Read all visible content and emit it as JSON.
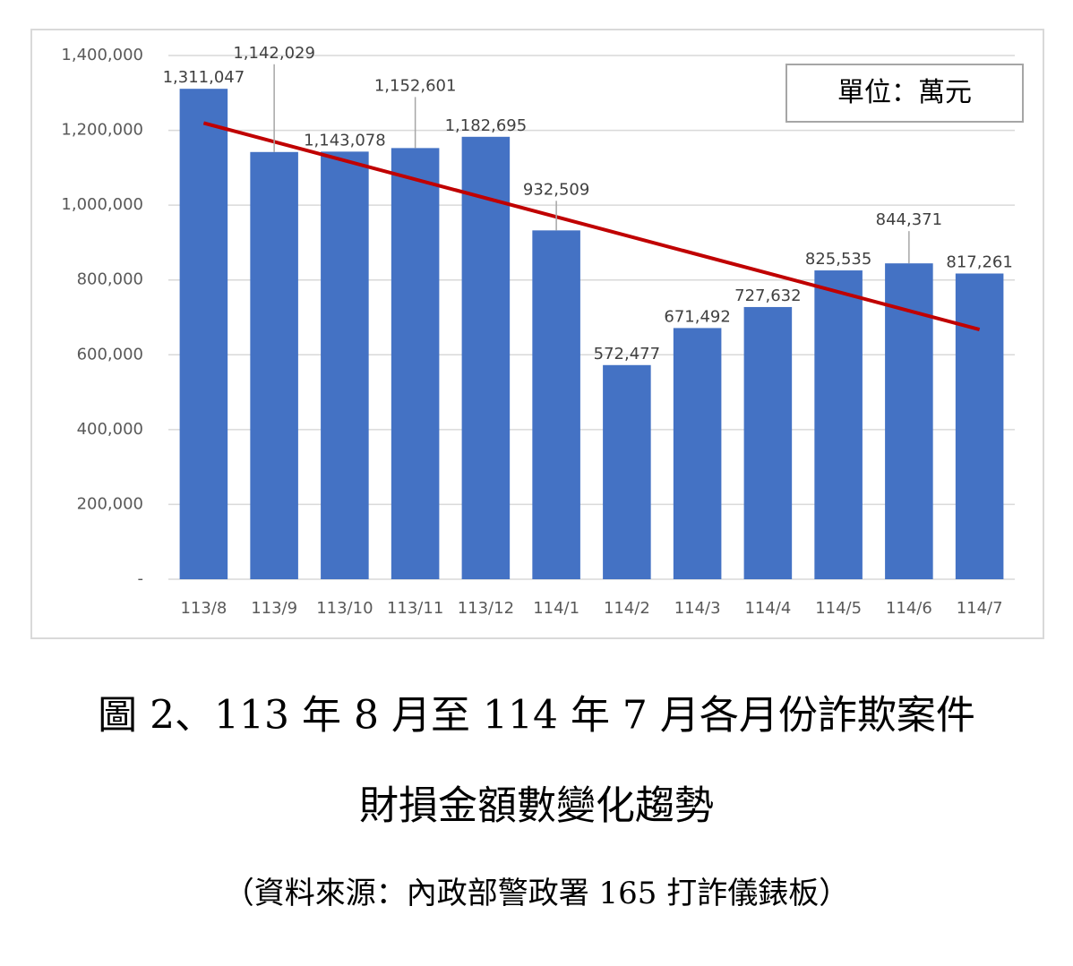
{
  "chart_data": {
    "type": "bar",
    "title": "圖 2、113 年 8 月至 114 年 7 月各月份詐欺案件",
    "subtitle": "財損金額數變化趨勢",
    "source": "（資料來源：內政部警政署 165 打詐儀錶板）",
    "unit_label": "單位：萬元",
    "categories": [
      "113/8",
      "113/9",
      "113/10",
      "113/11",
      "113/12",
      "114/1",
      "114/2",
      "114/3",
      "114/4",
      "114/5",
      "114/6",
      "114/7"
    ],
    "values": [
      1311047,
      1142029,
      1143078,
      1152601,
      1182695,
      932509,
      572477,
      671492,
      727632,
      825535,
      844371,
      817261
    ],
    "value_labels": [
      "1,311,047",
      "1,142,029",
      "1,143,078",
      "1,152,601",
      "1,182,695",
      "932,509",
      "572,477",
      "671,492",
      "727,632",
      "825,535",
      "844,371",
      "817,261"
    ],
    "color": "#4472c4",
    "trendline": true,
    "trendline_color": "#c00000",
    "ylim": [
      0,
      1400000
    ],
    "yticks": [
      {
        "value": 0,
        "label": "-"
      },
      {
        "value": 200000,
        "label": "200,000"
      },
      {
        "value": 400000,
        "label": "400,000"
      },
      {
        "value": 600000,
        "label": "600,000"
      },
      {
        "value": 800000,
        "label": "800,000"
      },
      {
        "value": 1000000,
        "label": "1,000,000"
      },
      {
        "value": 1200000,
        "label": "1,200,000"
      },
      {
        "value": 1400000,
        "label": "1,400,000"
      }
    ],
    "grid": true
  }
}
